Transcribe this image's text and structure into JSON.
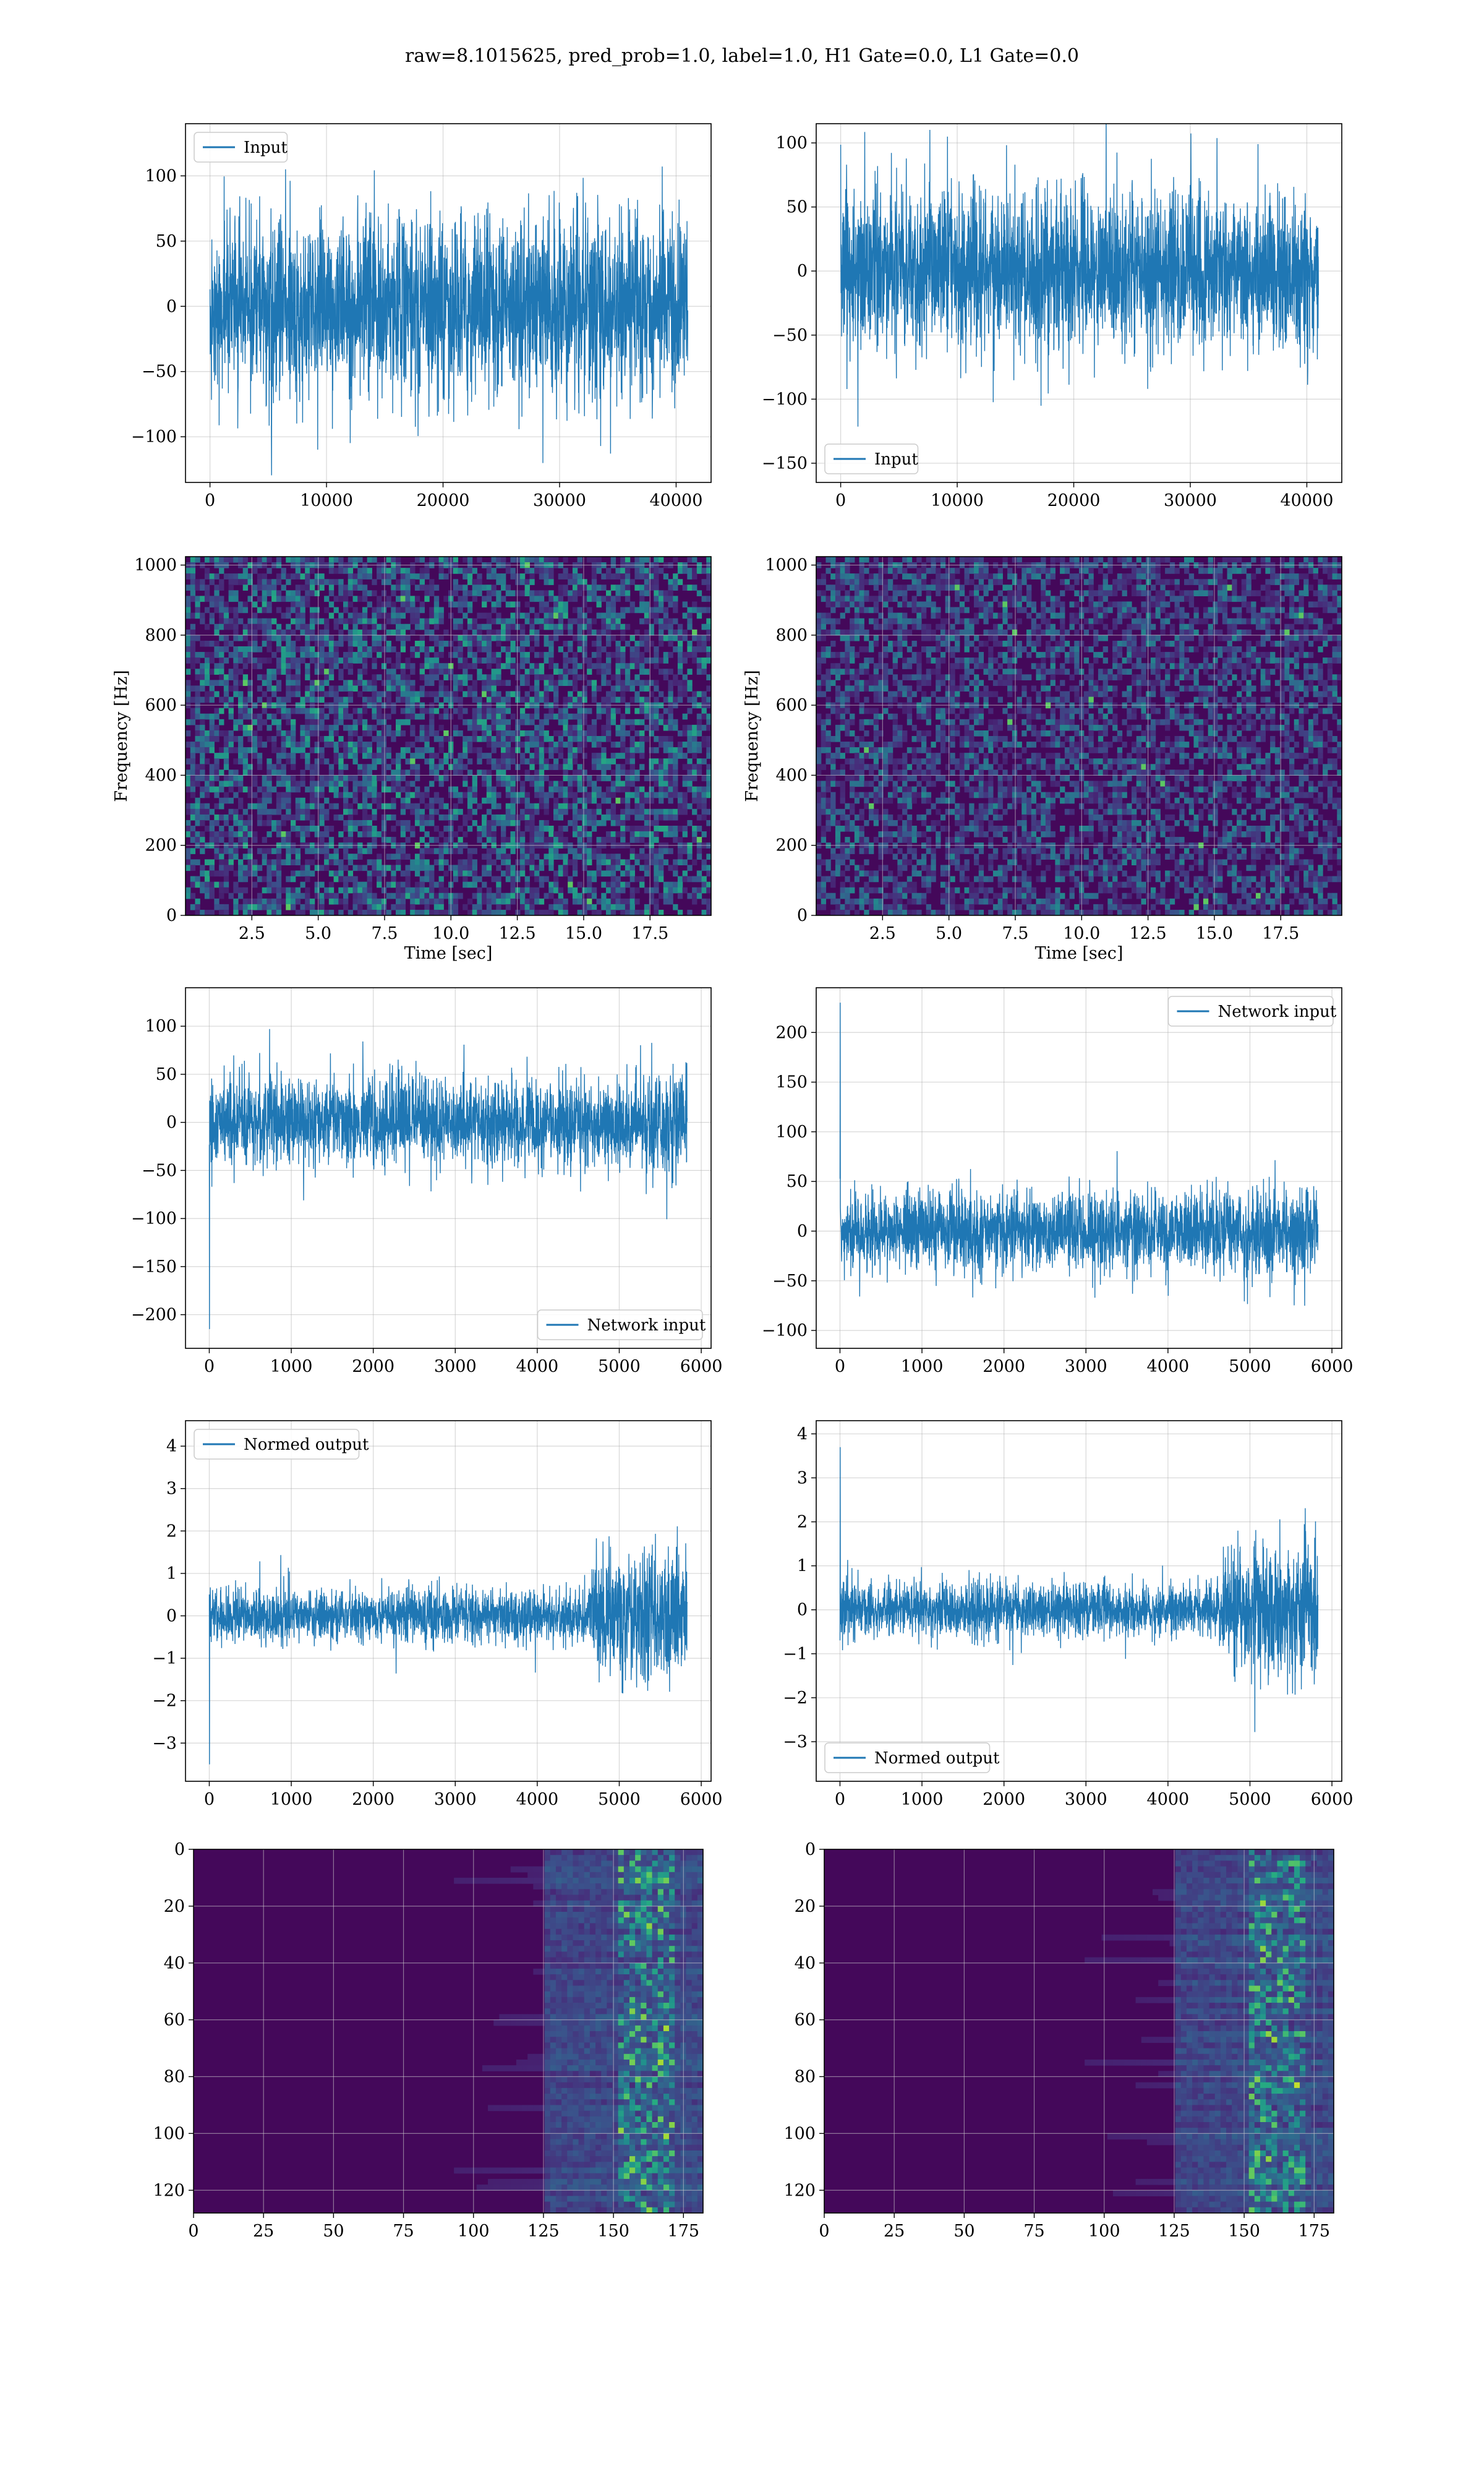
{
  "figure": {
    "suptitle": "raw=8.1015625, pred_prob=1.0, label=1.0, H1 Gate=0.0, L1 Gate=0.0",
    "line_color": "#1f77b4",
    "grid_color": "#b0b0b0"
  },
  "chart_data": [
    {
      "type": "line",
      "panel": "row1-left",
      "series": [
        {
          "name": "Input",
          "amplitude": 60,
          "n_points": 41000
        }
      ],
      "xlim": [
        -2100,
        43000
      ],
      "ylim": [
        -135,
        140
      ],
      "xticks": [
        0,
        10000,
        20000,
        30000,
        40000
      ],
      "yticks": [
        -100,
        -50,
        0,
        50,
        100
      ],
      "legend": "top-left",
      "grid": true,
      "xlabel": "",
      "ylabel": ""
    },
    {
      "type": "line",
      "panel": "row1-right",
      "series": [
        {
          "name": "Input",
          "amplitude": 55,
          "n_points": 41000
        }
      ],
      "xlim": [
        -2100,
        43000
      ],
      "ylim": [
        -165,
        115
      ],
      "xticks": [
        0,
        10000,
        20000,
        30000,
        40000
      ],
      "yticks": [
        -150,
        -100,
        -50,
        0,
        50,
        100
      ],
      "legend": "bottom-left",
      "grid": true,
      "xlabel": "",
      "ylabel": ""
    },
    {
      "type": "heatmap",
      "panel": "row2-left",
      "colormap": "viridis",
      "xlim": [
        0,
        19.8
      ],
      "ylim": [
        0,
        1024
      ],
      "xticks": [
        2.5,
        5.0,
        7.5,
        10.0,
        12.5,
        15.0,
        17.5
      ],
      "yticks": [
        0,
        200,
        400,
        600,
        800,
        1000
      ],
      "xlabel": "Time [sec]",
      "ylabel": "Frequency [Hz]",
      "grid": true
    },
    {
      "type": "heatmap",
      "panel": "row2-right",
      "colormap": "viridis",
      "xlim": [
        0,
        19.8
      ],
      "ylim": [
        0,
        1024
      ],
      "xticks": [
        2.5,
        5.0,
        7.5,
        10.0,
        12.5,
        15.0,
        17.5
      ],
      "yticks": [
        0,
        200,
        400,
        600,
        800,
        1000
      ],
      "xlabel": "Time [sec]",
      "ylabel": "Frequency [Hz]",
      "grid": true
    },
    {
      "type": "line",
      "panel": "row3-left",
      "series": [
        {
          "name": "Network input",
          "amplitude": 40,
          "n_points": 5830
        }
      ],
      "xlim": [
        -290,
        6120
      ],
      "ylim": [
        -235,
        140
      ],
      "xticks": [
        0,
        1000,
        2000,
        3000,
        4000,
        5000,
        6000
      ],
      "yticks": [
        -200,
        -150,
        -100,
        -50,
        0,
        50,
        100
      ],
      "legend": "bottom-right",
      "grid": true,
      "xlabel": "",
      "ylabel": ""
    },
    {
      "type": "line",
      "panel": "row3-right",
      "series": [
        {
          "name": "Network input",
          "amplitude": 35,
          "n_points": 5830
        }
      ],
      "xlim": [
        -290,
        6120
      ],
      "ylim": [
        -118,
        245
      ],
      "xticks": [
        0,
        1000,
        2000,
        3000,
        4000,
        5000,
        6000
      ],
      "yticks": [
        -100,
        -50,
        0,
        50,
        100,
        150,
        200
      ],
      "legend": "top-right",
      "grid": true,
      "xlabel": "",
      "ylabel": ""
    },
    {
      "type": "line",
      "panel": "row4-left",
      "series": [
        {
          "name": "Normed output",
          "amplitude": 0.55,
          "n_points": 5830
        }
      ],
      "xlim": [
        -290,
        6120
      ],
      "ylim": [
        -3.9,
        4.6
      ],
      "xticks": [
        0,
        1000,
        2000,
        3000,
        4000,
        5000,
        6000
      ],
      "yticks": [
        -3,
        -2,
        -1,
        0,
        1,
        2,
        3,
        4
      ],
      "legend": "top-left",
      "grid": true,
      "xlabel": "",
      "ylabel": ""
    },
    {
      "type": "line",
      "panel": "row4-right",
      "series": [
        {
          "name": "Normed output",
          "amplitude": 0.55,
          "n_points": 5830
        }
      ],
      "xlim": [
        -290,
        6120
      ],
      "ylim": [
        -3.9,
        4.3
      ],
      "xticks": [
        0,
        1000,
        2000,
        3000,
        4000,
        5000,
        6000
      ],
      "yticks": [
        -3,
        -2,
        -1,
        0,
        1,
        2,
        3,
        4
      ],
      "legend": "bottom-left",
      "grid": true,
      "xlabel": "",
      "ylabel": ""
    },
    {
      "type": "heatmap",
      "panel": "row5-left",
      "colormap": "viridis",
      "xlim": [
        0,
        182
      ],
      "ylim": [
        128,
        0
      ],
      "xticks": [
        0,
        25,
        50,
        75,
        100,
        125,
        150,
        175
      ],
      "yticks": [
        0,
        20,
        40,
        60,
        80,
        100,
        120
      ],
      "grid": true,
      "xlabel": "",
      "ylabel": ""
    },
    {
      "type": "heatmap",
      "panel": "row5-right",
      "colormap": "viridis",
      "xlim": [
        0,
        182
      ],
      "ylim": [
        128,
        0
      ],
      "xticks": [
        0,
        25,
        50,
        75,
        100,
        125,
        150,
        175
      ],
      "yticks": [
        0,
        20,
        40,
        60,
        80,
        100,
        120
      ],
      "grid": true,
      "xlabel": "",
      "ylabel": ""
    }
  ]
}
